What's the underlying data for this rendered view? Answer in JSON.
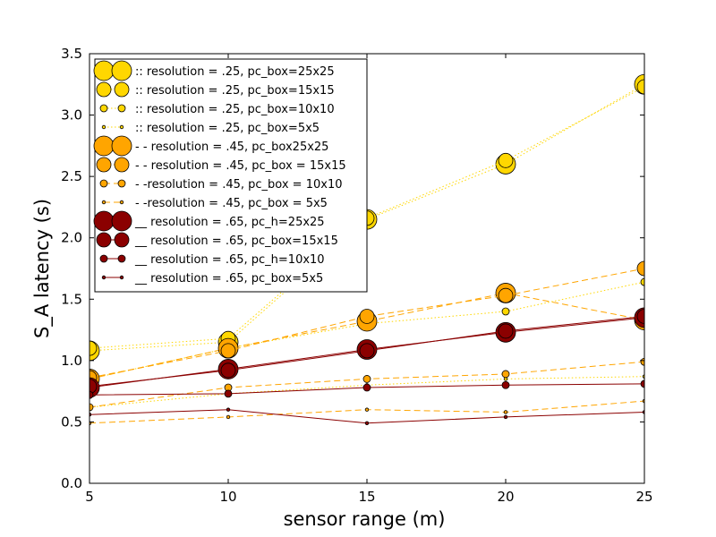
{
  "chart_data": {
    "type": "line",
    "title": "",
    "xlabel": "sensor range (m)",
    "ylabel": "S_A latency (s)",
    "xlim": [
      5,
      25
    ],
    "ylim": [
      0,
      3.5
    ],
    "xticks": [
      5,
      10,
      15,
      20,
      25
    ],
    "xtick_labels": [
      "5",
      "10",
      "15",
      "20",
      "25"
    ],
    "yticks": [
      0,
      0.5,
      1.0,
      1.5,
      2.0,
      2.5,
      3.0,
      3.5
    ],
    "ytick_labels": [
      "0.0",
      "0.5",
      "1.0",
      "1.5",
      "2.0",
      "2.5",
      "3.0",
      "3.5"
    ],
    "grid": false,
    "legend_position": "top-left",
    "x": [
      5,
      10,
      15,
      20,
      25
    ],
    "series": [
      {
        "name": ":: resolution = .25, pc_box=25x25",
        "color": "#FFD700",
        "linestyle": "dotted",
        "marker_size": "xlarge",
        "values": [
          1.08,
          1.15,
          2.15,
          2.6,
          3.25
        ]
      },
      {
        "name": ":: resolution = .25, pc_box=15x15",
        "color": "#FFD700",
        "linestyle": "dotted",
        "marker_size": "large",
        "values": [
          1.1,
          1.18,
          2.16,
          2.63,
          3.23
        ]
      },
      {
        "name": ":: resolution = .25, pc_box=10x10",
        "color": "#FFD700",
        "linestyle": "dotted",
        "marker_size": "medium",
        "values": [
          0.85,
          1.1,
          1.3,
          1.4,
          1.64
        ]
      },
      {
        "name": ":: resolution = .25, pc_box=5x5",
        "color": "#FFD700",
        "linestyle": "dotted",
        "marker_size": "small",
        "values": [
          0.62,
          0.73,
          0.8,
          0.85,
          0.87
        ]
      },
      {
        "name": "- - resolution = .45, pc_box25x25",
        "color": "#FFA500",
        "linestyle": "dashed",
        "marker_size": "xlarge",
        "values": [
          0.85,
          1.1,
          1.32,
          1.55,
          1.33
        ]
      },
      {
        "name": "- - resolution = .45, pc_box = 15x15",
        "color": "#FFA500",
        "linestyle": "dashed",
        "marker_size": "large",
        "values": [
          0.86,
          1.08,
          1.36,
          1.53,
          1.75
        ]
      },
      {
        "name": "- -resolution = .45, pc_box = 10x10",
        "color": "#FFA500",
        "linestyle": "dashed",
        "marker_size": "medium",
        "values": [
          0.62,
          0.78,
          0.85,
          0.89,
          0.99
        ]
      },
      {
        "name": "- -resolution = .45, pc_box = 5x5",
        "color": "#FFA500",
        "linestyle": "dashed",
        "marker_size": "small",
        "values": [
          0.49,
          0.54,
          0.6,
          0.58,
          0.67
        ]
      },
      {
        "name": "__ resolution = .65, pc_h=25x25",
        "color": "#8B0000",
        "linestyle": "solid",
        "marker_size": "xlarge",
        "values": [
          0.78,
          0.93,
          1.09,
          1.23,
          1.35
        ]
      },
      {
        "name": "__ resolution = .65, pc_box=15x15",
        "color": "#8B0000",
        "linestyle": "solid",
        "marker_size": "large",
        "values": [
          0.79,
          0.92,
          1.08,
          1.24,
          1.36
        ]
      },
      {
        "name": "__ resolution = .65, pc_h=10x10",
        "color": "#8B0000",
        "linestyle": "solid",
        "marker_size": "medium",
        "values": [
          0.72,
          0.73,
          0.78,
          0.8,
          0.81
        ]
      },
      {
        "name": "__ resolution = .65, pc_box=5x5",
        "color": "#8B0000",
        "linestyle": "solid",
        "marker_size": "small",
        "values": [
          0.56,
          0.6,
          0.49,
          0.54,
          0.58
        ]
      }
    ]
  }
}
